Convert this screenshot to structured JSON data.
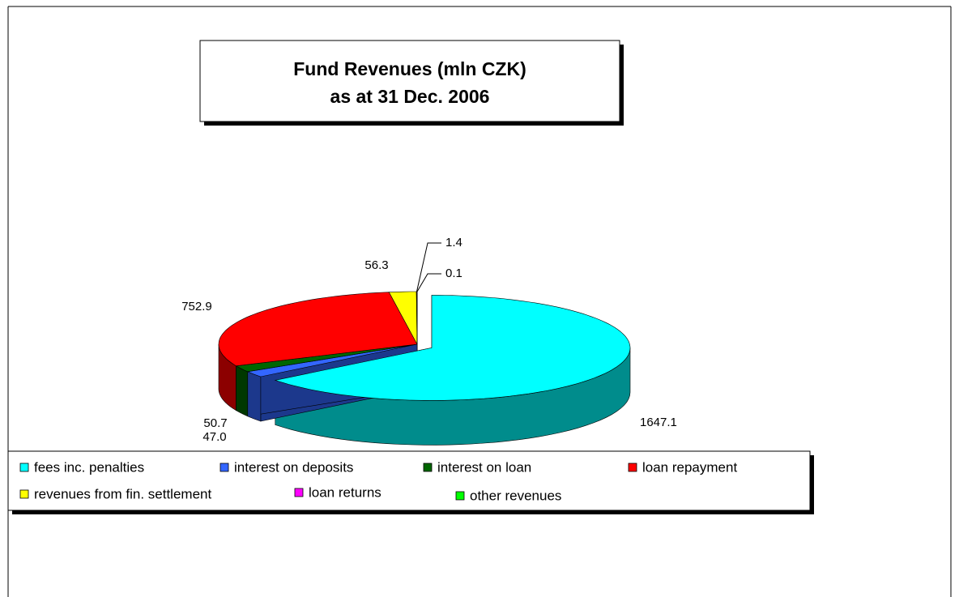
{
  "chart_data": {
    "type": "pie3d",
    "title": "Fund Revenues (mln CZK)",
    "subtitle": "as at 31 Dec. 2006",
    "categories": [
      "fees inc. penalties",
      "interest on deposits",
      "interest on loan",
      "loan repayment",
      "revenues from fin. settlement",
      "loan returns",
      "other revenues"
    ],
    "values": [
      1647.1,
      47.0,
      50.7,
      752.9,
      56.3,
      1.4,
      0.1
    ],
    "value_labels": [
      "1647.1",
      "47.0",
      "50.7",
      "752.9",
      "56.3",
      "1.4",
      "0.1"
    ],
    "colors": [
      "#00ffff",
      "#3366ff",
      "#006600",
      "#ff0000",
      "#ffff00",
      "#ff00ff",
      "#00ff00"
    ],
    "legend": "bottom"
  }
}
